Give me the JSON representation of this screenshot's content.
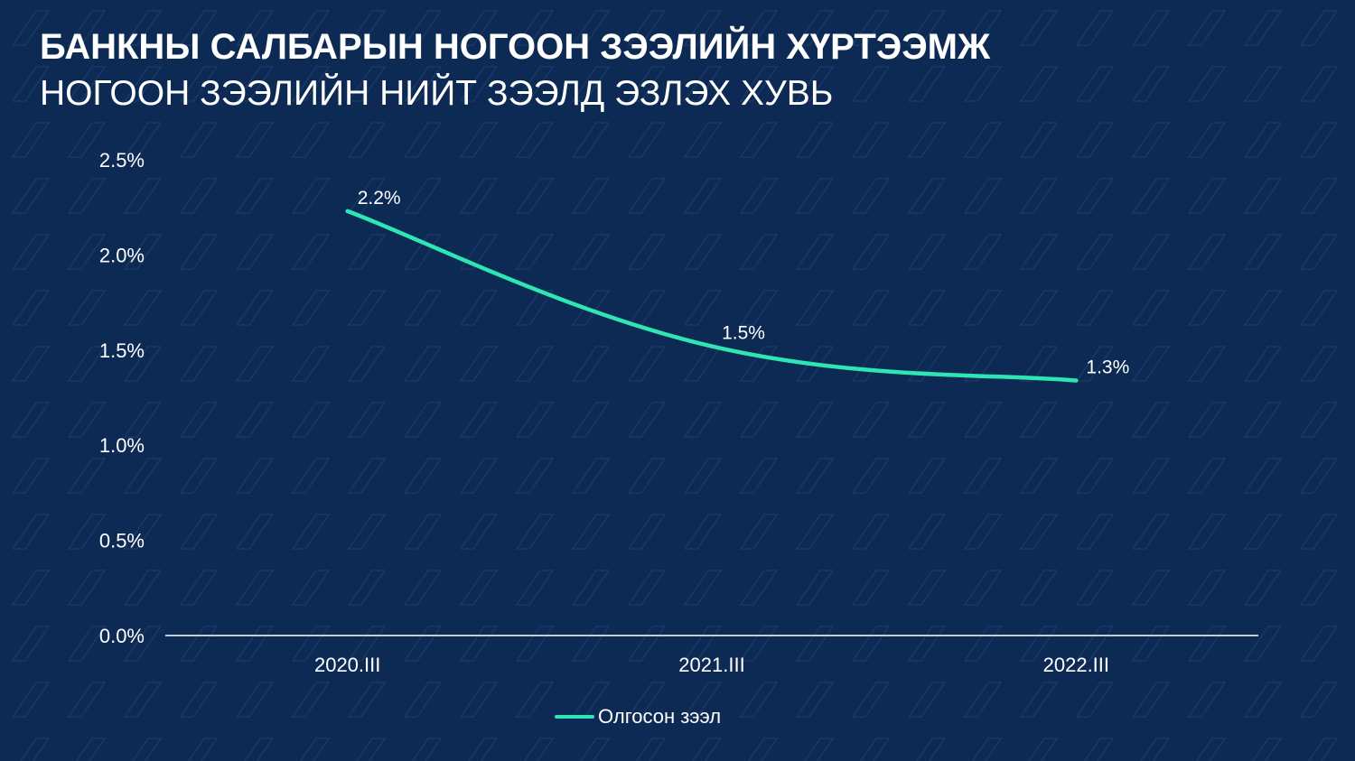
{
  "title": "БАНКНЫ САЛБАРЫН НОГООН ЗЭЭЛИЙН ХҮРТЭЭМЖ",
  "subtitle": "НОГООН ЗЭЭЛИЙН НИЙТ ЗЭЭЛД ЭЗЛЭХ ХУВЬ",
  "colors": {
    "background": "#0d2a55",
    "line": "#2ee6b4",
    "text": "#ffffff",
    "axis": "#ffffff"
  },
  "chart_data": {
    "type": "line",
    "categories": [
      "2020.III",
      "2021.III",
      "2022.III"
    ],
    "series": [
      {
        "name": "Олгосон зээл",
        "values": [
          2.23,
          1.52,
          1.34
        ],
        "labels": [
          "2.2%",
          "1.5%",
          "1.3%"
        ]
      }
    ],
    "ylim": [
      0,
      2.5
    ],
    "yticks": [
      0,
      0.5,
      1.0,
      1.5,
      2.0,
      2.5
    ],
    "ytick_labels": [
      "0.0%",
      "0.5%",
      "1.0%",
      "1.5%",
      "2.0%",
      "2.5%"
    ],
    "xlabel": "",
    "ylabel": "",
    "grid": false,
    "smooth": true,
    "legend_position": "bottom"
  }
}
